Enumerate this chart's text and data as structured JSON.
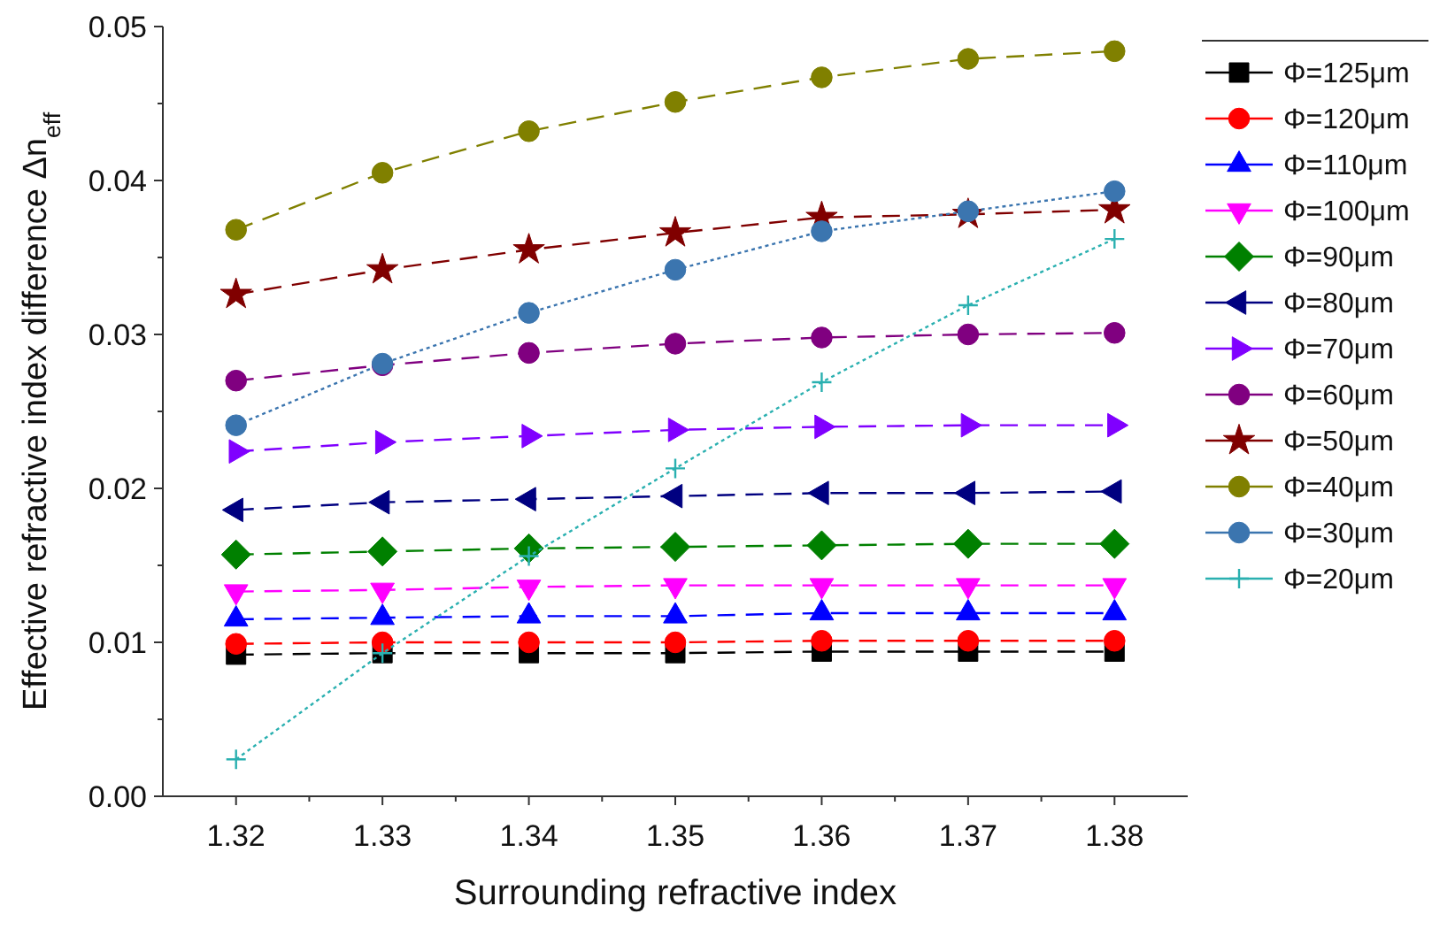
{
  "chart_data": {
    "type": "line",
    "xlabel": "Surrounding refractive index",
    "ylabel": "Effective refractive index difference Δn$_{eff}$",
    "x": [
      1.32,
      1.33,
      1.34,
      1.35,
      1.36,
      1.37,
      1.38
    ],
    "xlim": [
      1.315,
      1.385
    ],
    "xticks": [
      1.32,
      1.33,
      1.34,
      1.35,
      1.36,
      1.37,
      1.38
    ],
    "ylim": [
      0,
      0.05
    ],
    "yticks": [
      {
        "value": 0,
        "label": "0.00"
      },
      {
        "value": 0.01,
        "label": "0.01"
      },
      {
        "value": 0.02,
        "label": "0.02"
      },
      {
        "value": 0.03,
        "label": "0.03"
      },
      {
        "value": 0.04,
        "label": "0.04"
      },
      {
        "value": 0.05,
        "label": "0.05"
      }
    ],
    "legend": "top right",
    "grid": false,
    "series": [
      {
        "name": "Φ=125μm",
        "color": "#000000",
        "marker": "square",
        "line_style": "dashed",
        "values": [
          0.0092,
          0.0093,
          0.0093,
          0.0093,
          0.0094,
          0.0094,
          0.0094
        ]
      },
      {
        "name": "Φ=120μm",
        "color": "#ff0000",
        "marker": "circle",
        "line_style": "dashed",
        "values": [
          0.0099,
          0.01,
          0.01,
          0.01,
          0.0101,
          0.0101,
          0.0101
        ]
      },
      {
        "name": "Φ=110μm",
        "color": "#0000ff",
        "marker": "triangle",
        "line_style": "dashed",
        "values": [
          0.0115,
          0.0116,
          0.0117,
          0.0117,
          0.0119,
          0.0119,
          0.0119
        ]
      },
      {
        "name": "Φ=100μm",
        "color": "#ff00ff",
        "marker": "triangle-down",
        "line_style": "dashed",
        "values": [
          0.0133,
          0.0134,
          0.0136,
          0.0137,
          0.0137,
          0.0137,
          0.0137
        ]
      },
      {
        "name": "Φ=90μm",
        "color": "#008000",
        "marker": "diamond",
        "line_style": "dashed",
        "values": [
          0.0157,
          0.0159,
          0.0161,
          0.0162,
          0.0163,
          0.0164,
          0.0164
        ]
      },
      {
        "name": "Φ=80μm",
        "color": "#000080",
        "marker": "triangle-left",
        "line_style": "dashed",
        "values": [
          0.0186,
          0.0191,
          0.0193,
          0.0195,
          0.0197,
          0.0197,
          0.0198
        ]
      },
      {
        "name": "Φ=70μm",
        "color": "#8000ff",
        "marker": "triangle-right",
        "line_style": "dashed",
        "values": [
          0.0224,
          0.023,
          0.0234,
          0.0238,
          0.024,
          0.0241,
          0.0241
        ]
      },
      {
        "name": "Φ=60μm",
        "color": "#800080",
        "marker": "circle",
        "line_style": "dashed",
        "values": [
          0.027,
          0.028,
          0.0288,
          0.0294,
          0.0298,
          0.03,
          0.0301
        ]
      },
      {
        "name": "Φ=50μm",
        "color": "#800000",
        "marker": "star",
        "line_style": "dashed",
        "values": [
          0.0326,
          0.0342,
          0.0355,
          0.0366,
          0.0376,
          0.0378,
          0.0381
        ]
      },
      {
        "name": "Φ=40μm",
        "color": "#808000",
        "marker": "circle",
        "line_style": "dashed",
        "values": [
          0.0368,
          0.0405,
          0.0432,
          0.0451,
          0.0467,
          0.0479,
          0.0484
        ]
      },
      {
        "name": "Φ=30μm",
        "color": "#3b75af",
        "marker": "circle",
        "line_style": "dotted",
        "values": [
          0.0241,
          0.0281,
          0.0314,
          0.0342,
          0.0367,
          0.038,
          0.0393
        ]
      },
      {
        "name": "Φ=20μm",
        "color": "#2ab0b0",
        "marker": "cross",
        "line_style": "dotted",
        "values": [
          0.0024,
          0.0093,
          0.0156,
          0.0213,
          0.0269,
          0.0319,
          0.0362
        ]
      }
    ]
  }
}
